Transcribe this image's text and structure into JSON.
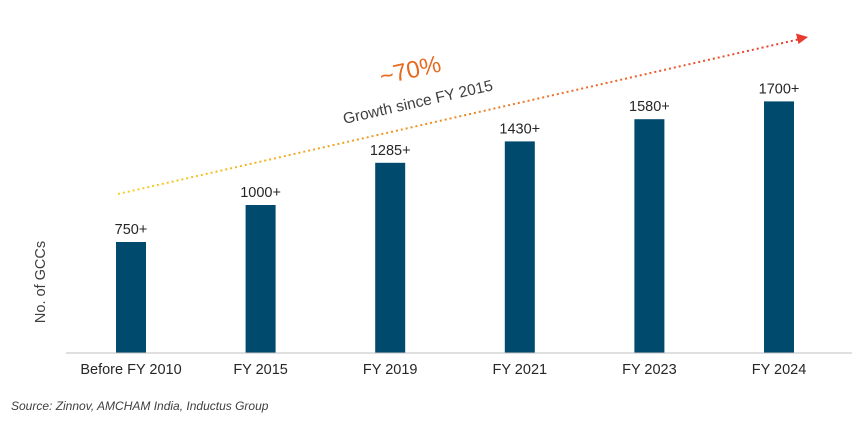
{
  "chart_data": {
    "type": "bar",
    "categories": [
      "Before FY 2010",
      "FY 2015",
      "FY 2019",
      "FY 2021",
      "FY 2023",
      "FY 2024"
    ],
    "values": [
      750,
      1000,
      1285,
      1430,
      1580,
      1700
    ],
    "value_labels": [
      "750+",
      "1000+",
      "1285+",
      "1430+",
      "1580+",
      "1700+"
    ],
    "ylabel": "No. of GCCs",
    "ylim": [
      0,
      2000
    ],
    "grid": false,
    "bar_color": "#004A6E",
    "annotation": {
      "value": "~70%",
      "text": "Growth since FY 2015",
      "value_color": "#E8691E",
      "arrow_colors": [
        "#F5D21F",
        "#E63B2E"
      ]
    }
  },
  "source": "Source: Zinnov, AMCHAM India, Inductus Group"
}
